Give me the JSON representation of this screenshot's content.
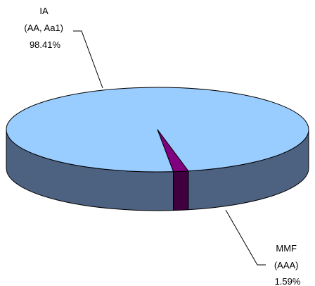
{
  "chart_data": {
    "type": "pie",
    "style": "3d",
    "title": "",
    "slices": [
      {
        "label_lines": [
          "IA",
          "(AA, Aa1)",
          "98.41%"
        ],
        "value": 98.41,
        "color": "#99CCFF",
        "side_color": "#4D6180"
      },
      {
        "label_lines": [
          "MMF",
          "(AAA)",
          "1.59%"
        ],
        "value": 1.59,
        "color": "#800080",
        "side_color": "#400040"
      }
    ],
    "legend": "none",
    "outline_color": "#000000"
  }
}
